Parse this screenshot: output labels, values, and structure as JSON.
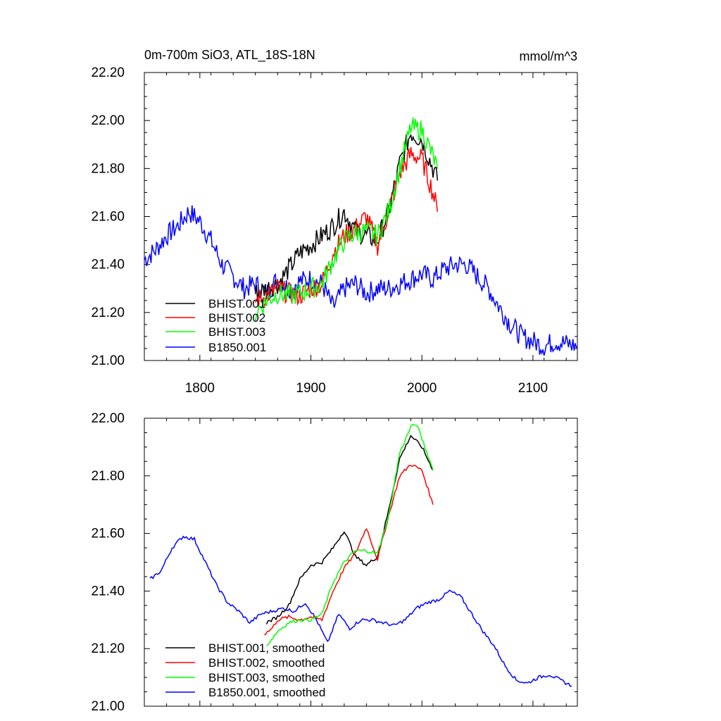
{
  "title_left": "0m-700m SiO3, ATL_18S-18N",
  "title_right": "mmol/m^3",
  "colors": {
    "BHIST.001": "#000000",
    "BHIST.002": "#ff0000",
    "BHIST.003": "#00ff00",
    "B1850.001": "#0000ff"
  },
  "chart_data": [
    {
      "type": "line",
      "xlim": [
        1750,
        2140
      ],
      "ylim": [
        21.0,
        22.2
      ],
      "xticks": [
        1800,
        1900,
        2000,
        2100
      ],
      "xtick_labels": [
        "1800",
        "1900",
        "2000",
        "2100"
      ],
      "yticks": [
        21.0,
        21.2,
        21.4,
        21.6,
        21.8,
        22.0,
        22.2
      ],
      "ytick_labels": [
        "21.00",
        "21.20",
        "21.40",
        "21.60",
        "21.80",
        "22.00",
        "22.20"
      ],
      "legend_position": "bottom-left",
      "series": [
        {
          "name": "BHIST.001",
          "x": [
            1850,
            1860,
            1870,
            1880,
            1890,
            1900,
            1910,
            1920,
            1930,
            1940,
            1950,
            1960,
            1970,
            1980,
            1990,
            2000,
            2010,
            2014
          ],
          "y": [
            21.28,
            21.3,
            21.32,
            21.38,
            21.45,
            21.48,
            21.52,
            21.56,
            21.62,
            21.54,
            21.52,
            21.5,
            21.62,
            21.82,
            21.95,
            21.92,
            21.8,
            21.75
          ]
        },
        {
          "name": "BHIST.002",
          "x": [
            1850,
            1860,
            1870,
            1880,
            1890,
            1900,
            1910,
            1920,
            1930,
            1940,
            1950,
            1960,
            1970,
            1980,
            1990,
            2000,
            2010,
            2014
          ],
          "y": [
            21.25,
            21.27,
            21.3,
            21.28,
            21.27,
            21.3,
            21.32,
            21.45,
            21.52,
            21.55,
            21.6,
            21.48,
            21.62,
            21.78,
            21.86,
            21.84,
            21.7,
            21.62
          ]
        },
        {
          "name": "BHIST.003",
          "x": [
            1850,
            1860,
            1870,
            1880,
            1890,
            1900,
            1910,
            1920,
            1930,
            1940,
            1950,
            1960,
            1970,
            1980,
            1990,
            2000,
            2010,
            2014
          ],
          "y": [
            21.2,
            21.25,
            21.28,
            21.27,
            21.28,
            21.3,
            21.32,
            21.42,
            21.5,
            21.53,
            21.54,
            21.52,
            21.62,
            21.8,
            21.97,
            21.96,
            21.85,
            21.8
          ]
        },
        {
          "name": "B1850.001",
          "x": [
            1750,
            1760,
            1770,
            1780,
            1790,
            1800,
            1810,
            1820,
            1830,
            1840,
            1850,
            1860,
            1870,
            1880,
            1890,
            1900,
            1910,
            1920,
            1930,
            1940,
            1950,
            1960,
            1970,
            1980,
            1990,
            2000,
            2010,
            2020,
            2030,
            2040,
            2050,
            2060,
            2070,
            2080,
            2090,
            2100,
            2110,
            2120,
            2130,
            2140
          ],
          "y": [
            21.42,
            21.46,
            21.52,
            21.56,
            21.62,
            21.58,
            21.5,
            21.4,
            21.35,
            21.3,
            21.32,
            21.28,
            21.34,
            21.3,
            21.33,
            21.34,
            21.32,
            21.22,
            21.3,
            21.32,
            21.28,
            21.3,
            21.3,
            21.32,
            21.34,
            21.36,
            21.34,
            21.38,
            21.4,
            21.4,
            21.35,
            21.3,
            21.22,
            21.15,
            21.1,
            21.08,
            21.06,
            21.08,
            21.07,
            21.06
          ]
        }
      ]
    },
    {
      "type": "line",
      "xlim": [
        1750,
        2140
      ],
      "ylim": [
        21.0,
        22.0
      ],
      "xticks": [
        1800,
        1900,
        2000,
        2100
      ],
      "xtick_labels": [],
      "yticks": [
        21.0,
        21.2,
        21.4,
        21.6,
        21.8,
        22.0
      ],
      "ytick_labels": [
        "21.00",
        "21.20",
        "21.40",
        "21.60",
        "21.80",
        "22.00"
      ],
      "legend_position": "bottom-left",
      "series": [
        {
          "name": "BHIST.001, smoothed",
          "x": [
            1860,
            1870,
            1880,
            1890,
            1900,
            1910,
            1920,
            1930,
            1940,
            1950,
            1960,
            1970,
            1980,
            1990,
            2000,
            2010
          ],
          "y": [
            21.29,
            21.31,
            21.35,
            21.44,
            21.49,
            21.5,
            21.55,
            21.61,
            21.52,
            21.49,
            21.52,
            21.68,
            21.86,
            21.94,
            21.9,
            21.82
          ]
        },
        {
          "name": "BHIST.002, smoothed",
          "x": [
            1858,
            1865,
            1870,
            1880,
            1890,
            1900,
            1910,
            1920,
            1930,
            1940,
            1950,
            1960,
            1970,
            1980,
            1990,
            2000,
            2010
          ],
          "y": [
            21.25,
            21.27,
            21.3,
            21.31,
            21.3,
            21.31,
            21.3,
            21.4,
            21.48,
            21.53,
            21.62,
            21.51,
            21.66,
            21.8,
            21.84,
            21.82,
            21.7
          ]
        },
        {
          "name": "BHIST.003, smoothed",
          "x": [
            1860,
            1870,
            1880,
            1890,
            1900,
            1910,
            1920,
            1930,
            1940,
            1950,
            1960,
            1970,
            1980,
            1990,
            1995,
            2000,
            2010
          ],
          "y": [
            21.21,
            21.26,
            21.29,
            21.3,
            21.3,
            21.32,
            21.43,
            21.5,
            21.54,
            21.54,
            21.53,
            21.66,
            21.88,
            21.97,
            21.98,
            21.93,
            21.82
          ]
        },
        {
          "name": "B1850.001, smoothed",
          "x": [
            1755,
            1765,
            1775,
            1785,
            1795,
            1805,
            1815,
            1825,
            1835,
            1845,
            1855,
            1865,
            1875,
            1885,
            1895,
            1905,
            1915,
            1925,
            1935,
            1945,
            1955,
            1965,
            1975,
            1985,
            1995,
            2005,
            2015,
            2025,
            2035,
            2045,
            2055,
            2065,
            2075,
            2085,
            2095,
            2105,
            2115,
            2125,
            2135
          ],
          "y": [
            21.44,
            21.47,
            21.55,
            21.59,
            21.58,
            21.5,
            21.42,
            21.36,
            21.33,
            21.29,
            21.32,
            21.33,
            21.34,
            21.33,
            21.36,
            21.3,
            21.22,
            21.32,
            21.27,
            21.3,
            21.3,
            21.29,
            21.28,
            21.3,
            21.34,
            21.36,
            21.37,
            21.4,
            21.38,
            21.32,
            21.26,
            21.21,
            21.14,
            21.09,
            21.08,
            21.1,
            21.11,
            21.09,
            21.07
          ]
        }
      ]
    }
  ]
}
